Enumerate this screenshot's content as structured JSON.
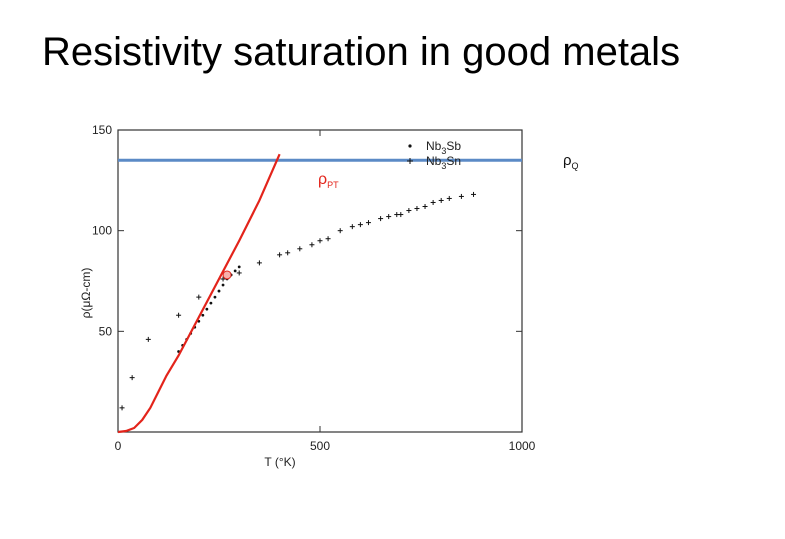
{
  "slide": {
    "title": "Resistivity saturation in good metals"
  },
  "colors": {
    "fit_line": "#e3241b",
    "saturation_line": "#5b8ac6",
    "markers": "#111111",
    "frame": "#333333"
  },
  "chart_data": {
    "type": "scatter",
    "title": "",
    "xlabel": "T (°K)",
    "ylabel": "ρ(μΩ-cm)",
    "xlim": [
      0,
      1000
    ],
    "ylim": [
      0,
      150
    ],
    "xticks": [
      {
        "value": 0,
        "label": "0"
      },
      {
        "value": 500,
        "label": "500"
      },
      {
        "value": 1000,
        "label": "1000"
      }
    ],
    "yticks": [
      {
        "value": 50,
        "label": "50"
      },
      {
        "value": 100,
        "label": "100"
      },
      {
        "value": 150,
        "label": "150"
      }
    ],
    "legend_position": "top-right",
    "series": [
      {
        "name": "Nb3Sb",
        "label_main": "Nb",
        "label_sub": "3",
        "label_end": "Sb",
        "marker": "dot",
        "x": [
          150,
          160,
          170,
          180,
          190,
          200,
          210,
          220,
          230,
          240,
          250,
          260,
          270,
          280,
          290,
          300
        ],
        "y": [
          40,
          43,
          46,
          49,
          52,
          55,
          58,
          61,
          64,
          67,
          70,
          73,
          76,
          78,
          80,
          82
        ]
      },
      {
        "name": "Nb3Sn",
        "label_main": "Nb",
        "label_sub": "3",
        "label_end": "Sn",
        "marker": "plus",
        "x": [
          10,
          35,
          75,
          150,
          200,
          260,
          300,
          350,
          400,
          420,
          450,
          480,
          500,
          520,
          550,
          580,
          600,
          620,
          650,
          670,
          690,
          700,
          720,
          740,
          760,
          780,
          800,
          820,
          850,
          880
        ],
        "y": [
          12,
          27,
          46,
          58,
          67,
          76,
          79,
          84,
          88,
          89,
          91,
          93,
          95,
          96,
          100,
          102,
          103,
          104,
          106,
          107,
          108,
          108,
          110,
          111,
          112,
          114,
          115,
          116,
          117,
          118
        ]
      }
    ],
    "fit_line": {
      "name": "ρPT",
      "label_main": "ρ",
      "label_sub": "PT",
      "x": [
        0,
        20,
        40,
        60,
        80,
        100,
        120,
        150,
        200,
        250,
        300,
        350,
        400
      ],
      "y": [
        0,
        0.5,
        2,
        6,
        12,
        20,
        28,
        38,
        57,
        76,
        95,
        115,
        138
      ]
    },
    "highlight_point": {
      "x": 270,
      "y": 78
    },
    "saturation_line": {
      "name": "ρQ",
      "label_main": "ρ",
      "label_sub": "Q",
      "y": 135
    }
  }
}
